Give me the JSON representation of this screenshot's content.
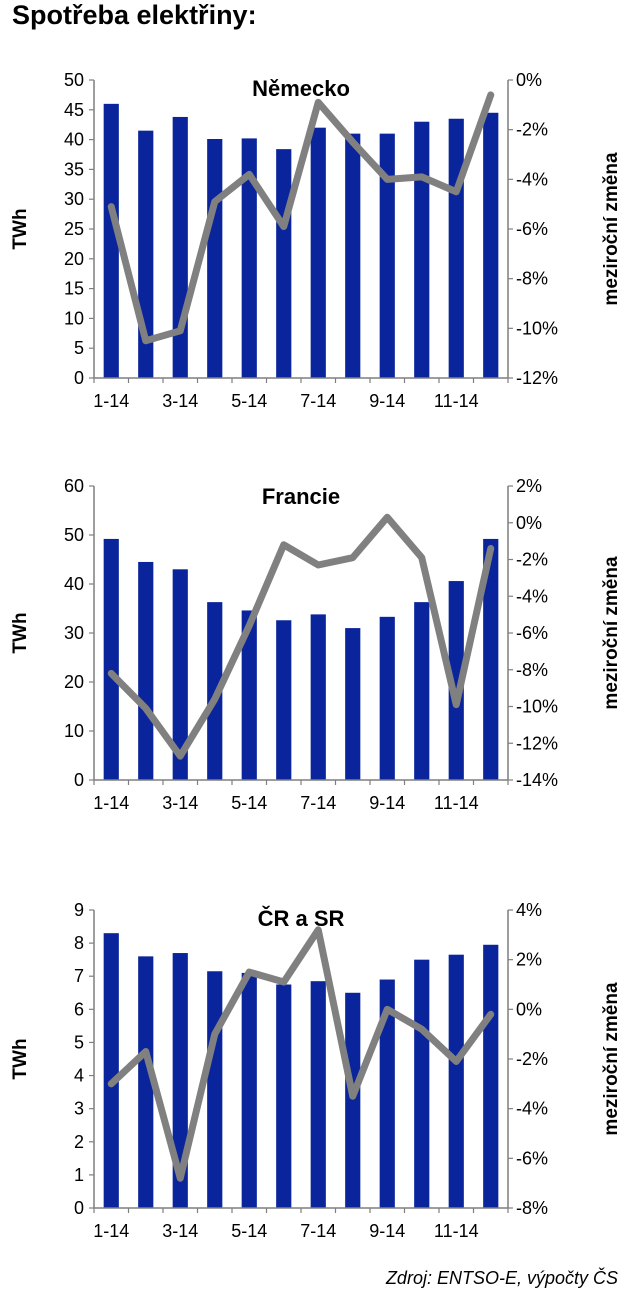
{
  "title": "Spotřeba elektřiny:",
  "source": "Zdroj: ENTSO-E, výpočty ČS",
  "colors": {
    "bar": "#0a249b",
    "line": "#808080",
    "axis": "#7f7f7f",
    "text": "#000000"
  },
  "chart_data": [
    {
      "type": "bar",
      "title": "Německo",
      "ylabel": "TWh",
      "y2label": "meziroční změna",
      "ylim": [
        0,
        50
      ],
      "yticks": [
        0,
        5,
        10,
        15,
        20,
        25,
        30,
        35,
        40,
        45,
        50
      ],
      "ytick_labels": [
        "0",
        "5",
        "10",
        "15",
        "20",
        "25",
        "30",
        "35",
        "40",
        "45",
        "50"
      ],
      "y2lim": [
        -12,
        0
      ],
      "y2ticks": [
        -12,
        -10,
        -8,
        -6,
        -4,
        -2,
        0
      ],
      "y2tick_labels": [
        "-12%",
        "-10%",
        "-8%",
        "-6%",
        "-4%",
        "-2%",
        "0%"
      ],
      "categories": [
        "1-14",
        "2-14",
        "3-14",
        "4-14",
        "5-14",
        "6-14",
        "7-14",
        "8-14",
        "9-14",
        "10-14",
        "11-14",
        "12-14"
      ],
      "xtick_labels": [
        "1-14",
        "",
        "3-14",
        "",
        "5-14",
        "",
        "7-14",
        "",
        "9-14",
        "",
        "11-14",
        ""
      ],
      "series": [
        {
          "type": "bar",
          "axis": "left",
          "values": [
            46,
            41.5,
            43.8,
            40.1,
            40.2,
            38.4,
            42,
            41,
            41,
            43,
            43.5,
            44.5
          ]
        },
        {
          "type": "line",
          "axis": "right",
          "values": [
            -5.1,
            -10.5,
            -10.1,
            -4.9,
            -3.8,
            -5.9,
            -0.9,
            -2.5,
            -4,
            -3.9,
            -4.5,
            -0.6
          ]
        }
      ]
    },
    {
      "type": "bar",
      "title": "Francie",
      "ylabel": "TWh",
      "y2label": "meziroční změna",
      "ylim": [
        0,
        60
      ],
      "yticks": [
        0,
        10,
        20,
        30,
        40,
        50,
        60
      ],
      "ytick_labels": [
        "0",
        "10",
        "20",
        "30",
        "40",
        "50",
        "60"
      ],
      "y2lim": [
        -14,
        2
      ],
      "y2ticks": [
        -14,
        -12,
        -10,
        -8,
        -6,
        -4,
        -2,
        0,
        2
      ],
      "y2tick_labels": [
        "-14%",
        "-12%",
        "-10%",
        "-8%",
        "-6%",
        "-4%",
        "-2%",
        "0%",
        "2%"
      ],
      "categories": [
        "1-14",
        "2-14",
        "3-14",
        "4-14",
        "5-14",
        "6-14",
        "7-14",
        "8-14",
        "9-14",
        "10-14",
        "11-14",
        "12-14"
      ],
      "xtick_labels": [
        "1-14",
        "",
        "3-14",
        "",
        "5-14",
        "",
        "7-14",
        "",
        "9-14",
        "",
        "11-14",
        ""
      ],
      "series": [
        {
          "type": "bar",
          "axis": "left",
          "values": [
            49.2,
            44.5,
            43,
            36.3,
            34.6,
            32.6,
            33.8,
            31,
            33.3,
            36.3,
            40.6,
            49.2
          ]
        },
        {
          "type": "line",
          "axis": "right",
          "values": [
            -8.2,
            -10.1,
            -12.7,
            -9.6,
            -5.6,
            -1.2,
            -2.3,
            -1.9,
            0.3,
            -1.9,
            -9.9,
            -1.4
          ]
        }
      ]
    },
    {
      "type": "bar",
      "title": "ČR a SR",
      "ylabel": "TWh",
      "y2label": "meziroční změna",
      "ylim": [
        0,
        9
      ],
      "yticks": [
        0,
        1,
        2,
        3,
        4,
        5,
        6,
        7,
        8,
        9
      ],
      "ytick_labels": [
        "0",
        "1",
        "2",
        "3",
        "4",
        "5",
        "6",
        "7",
        "8",
        "9"
      ],
      "y2lim": [
        -8,
        4
      ],
      "y2ticks": [
        -8,
        -6,
        -4,
        -2,
        0,
        2,
        4
      ],
      "y2tick_labels": [
        "-8%",
        "-6%",
        "-4%",
        "-2%",
        "0%",
        "2%",
        "4%"
      ],
      "categories": [
        "1-14",
        "2-14",
        "3-14",
        "4-14",
        "5-14",
        "6-14",
        "7-14",
        "8-14",
        "9-14",
        "10-14",
        "11-14",
        "12-14"
      ],
      "xtick_labels": [
        "1-14",
        "",
        "3-14",
        "",
        "5-14",
        "",
        "7-14",
        "",
        "9-14",
        "",
        "11-14",
        ""
      ],
      "series": [
        {
          "type": "bar",
          "axis": "left",
          "values": [
            8.3,
            7.6,
            7.7,
            7.15,
            7.1,
            6.75,
            6.85,
            6.5,
            6.9,
            7.5,
            7.65,
            7.95
          ]
        },
        {
          "type": "line",
          "axis": "right",
          "values": [
            -3,
            -1.7,
            -6.8,
            -1,
            1.5,
            1.1,
            3.2,
            -3.5,
            0,
            -0.8,
            -2.1,
            -0.2
          ]
        }
      ]
    }
  ]
}
